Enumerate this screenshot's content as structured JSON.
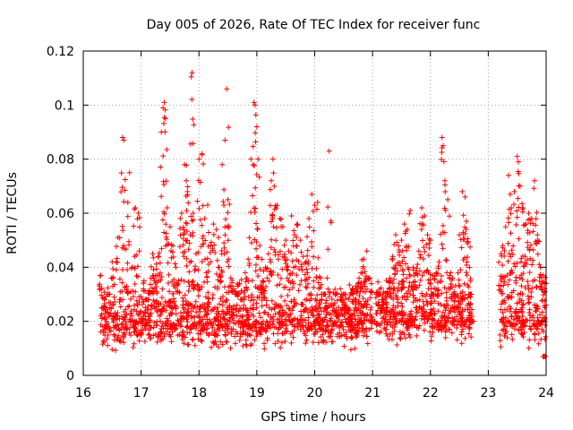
{
  "chart_data": {
    "type": "scatter",
    "title": "Day 005 of 2026, Rate Of TEC Index for receiver func",
    "xlabel": "GPS time / hours",
    "ylabel": "ROTI / TECUs",
    "xlim": [
      16,
      24
    ],
    "ylim": [
      0,
      0.12
    ],
    "x_ticks": [
      16,
      17,
      18,
      19,
      20,
      21,
      22,
      23,
      24
    ],
    "x_tick_labels": [
      "16",
      "17",
      "18",
      "19",
      "20",
      "21",
      "22",
      "23",
      "24"
    ],
    "y_ticks": [
      0,
      0.02,
      0.04,
      0.06,
      0.08,
      0.1,
      0.12
    ],
    "y_tick_labels": [
      "0",
      "0.02",
      "0.04",
      "0.06",
      "0.08",
      "0.1",
      "0.12"
    ],
    "grid": true,
    "marker": "+",
    "color": "#ff0000",
    "data_gaps_hours": [
      [
        21.0,
        21.05
      ],
      [
        22.75,
        23.2
      ]
    ],
    "series": [
      {
        "name": "ROTI",
        "points": [
          [
            16.3,
            0.037
          ],
          [
            16.35,
            0.025
          ],
          [
            16.4,
            0.018
          ],
          [
            16.45,
            0.03
          ],
          [
            16.5,
            0.042
          ],
          [
            16.55,
            0.022
          ],
          [
            16.6,
            0.051
          ],
          [
            16.65,
            0.028
          ],
          [
            16.68,
            0.088
          ],
          [
            16.7,
            0.087
          ],
          [
            16.75,
            0.033
          ],
          [
            16.8,
            0.075
          ],
          [
            16.85,
            0.04
          ],
          [
            16.9,
            0.062
          ],
          [
            16.95,
            0.06
          ],
          [
            17.0,
            0.02
          ],
          [
            17.05,
            0.035
          ],
          [
            17.1,
            0.028
          ],
          [
            17.15,
            0.031
          ],
          [
            17.2,
            0.045
          ],
          [
            17.25,
            0.037
          ],
          [
            17.3,
            0.044
          ],
          [
            17.35,
            0.09
          ],
          [
            17.38,
            0.099
          ],
          [
            17.4,
            0.101
          ],
          [
            17.42,
            0.095
          ],
          [
            17.45,
            0.062
          ],
          [
            17.5,
            0.055
          ],
          [
            17.55,
            0.048
          ],
          [
            17.6,
            0.04
          ],
          [
            17.65,
            0.035
          ],
          [
            17.7,
            0.06
          ],
          [
            17.75,
            0.078
          ],
          [
            17.78,
            0.072
          ],
          [
            17.8,
            0.068
          ],
          [
            17.85,
            0.052
          ],
          [
            17.88,
            0.112
          ],
          [
            17.9,
            0.06
          ],
          [
            17.95,
            0.045
          ],
          [
            18.0,
            0.08
          ],
          [
            18.05,
            0.082
          ],
          [
            18.1,
            0.058
          ],
          [
            18.15,
            0.063
          ],
          [
            18.2,
            0.048
          ],
          [
            18.25,
            0.056
          ],
          [
            18.3,
            0.054
          ],
          [
            18.35,
            0.04
          ],
          [
            18.4,
            0.078
          ],
          [
            18.45,
            0.087
          ],
          [
            18.48,
            0.106
          ],
          [
            18.5,
            0.065
          ],
          [
            18.55,
            0.036
          ],
          [
            18.6,
            0.032
          ],
          [
            18.65,
            0.03
          ],
          [
            18.7,
            0.034
          ],
          [
            18.75,
            0.028
          ],
          [
            18.8,
            0.038
          ],
          [
            18.85,
            0.043
          ],
          [
            18.9,
            0.08
          ],
          [
            18.95,
            0.101
          ],
          [
            18.97,
            0.1
          ],
          [
            19.0,
            0.092
          ],
          [
            19.02,
            0.08
          ],
          [
            19.05,
            0.048
          ],
          [
            19.1,
            0.035
          ],
          [
            19.15,
            0.04
          ],
          [
            19.2,
            0.045
          ],
          [
            19.25,
            0.072
          ],
          [
            19.28,
            0.08
          ],
          [
            19.3,
            0.07
          ],
          [
            19.35,
            0.063
          ],
          [
            19.4,
            0.058
          ],
          [
            19.45,
            0.055
          ],
          [
            19.5,
            0.05
          ],
          [
            19.55,
            0.046
          ],
          [
            19.6,
            0.059
          ],
          [
            19.65,
            0.052
          ],
          [
            19.7,
            0.056
          ],
          [
            19.75,
            0.05
          ],
          [
            19.8,
            0.044
          ],
          [
            19.85,
            0.042
          ],
          [
            19.9,
            0.058
          ],
          [
            19.95,
            0.067
          ],
          [
            20.0,
            0.063
          ],
          [
            20.05,
            0.064
          ],
          [
            20.1,
            0.036
          ],
          [
            20.15,
            0.03
          ],
          [
            20.2,
            0.025
          ],
          [
            20.25,
            0.083
          ],
          [
            20.3,
            0.026
          ],
          [
            20.35,
            0.024
          ],
          [
            20.4,
            0.022
          ],
          [
            20.45,
            0.028
          ],
          [
            20.5,
            0.03
          ],
          [
            20.55,
            0.025
          ],
          [
            20.6,
            0.021
          ],
          [
            20.65,
            0.032
          ],
          [
            20.7,
            0.028
          ],
          [
            20.75,
            0.034
          ],
          [
            20.8,
            0.038
          ],
          [
            20.85,
            0.043
          ],
          [
            20.9,
            0.046
          ],
          [
            20.95,
            0.036
          ],
          [
            21.0,
            0.02
          ],
          [
            21.1,
            0.03
          ],
          [
            21.15,
            0.024
          ],
          [
            21.2,
            0.027
          ],
          [
            21.25,
            0.031
          ],
          [
            21.3,
            0.036
          ],
          [
            21.35,
            0.044
          ],
          [
            21.4,
            0.052
          ],
          [
            21.45,
            0.048
          ],
          [
            21.5,
            0.05
          ],
          [
            21.55,
            0.056
          ],
          [
            21.6,
            0.054
          ],
          [
            21.65,
            0.061
          ],
          [
            21.7,
            0.04
          ],
          [
            21.75,
            0.038
          ],
          [
            21.8,
            0.046
          ],
          [
            21.85,
            0.062
          ],
          [
            21.9,
            0.059
          ],
          [
            21.95,
            0.052
          ],
          [
            22.0,
            0.05
          ],
          [
            22.05,
            0.03
          ],
          [
            22.1,
            0.038
          ],
          [
            22.15,
            0.042
          ],
          [
            22.2,
            0.088
          ],
          [
            22.22,
            0.085
          ],
          [
            22.25,
            0.072
          ],
          [
            22.3,
            0.065
          ],
          [
            22.35,
            0.038
          ],
          [
            22.4,
            0.03
          ],
          [
            22.45,
            0.025
          ],
          [
            22.5,
            0.052
          ],
          [
            22.55,
            0.068
          ],
          [
            22.6,
            0.066
          ],
          [
            22.62,
            0.057
          ],
          [
            22.65,
            0.049
          ],
          [
            22.7,
            0.03
          ],
          [
            22.72,
            0.02
          ],
          [
            23.22,
            0.045
          ],
          [
            23.25,
            0.048
          ],
          [
            23.3,
            0.055
          ],
          [
            23.35,
            0.074
          ],
          [
            23.38,
            0.067
          ],
          [
            23.4,
            0.062
          ],
          [
            23.45,
            0.068
          ],
          [
            23.5,
            0.081
          ],
          [
            23.52,
            0.079
          ],
          [
            23.55,
            0.07
          ],
          [
            23.6,
            0.062
          ],
          [
            23.65,
            0.056
          ],
          [
            23.7,
            0.06
          ],
          [
            23.75,
            0.058
          ],
          [
            23.8,
            0.072
          ],
          [
            23.85,
            0.052
          ],
          [
            23.9,
            0.04
          ],
          [
            23.95,
            0.037
          ],
          [
            24.0,
            0.034
          ],
          [
            23.98,
            0.007
          ]
        ],
        "dense_bands": [
          {
            "x_start": 16.28,
            "x_end": 21.0,
            "y_low": 0.008,
            "y_high": 0.038,
            "y_mode": 0.02
          },
          {
            "x_start": 21.05,
            "x_end": 22.75,
            "y_low": 0.01,
            "y_high": 0.04,
            "y_mode": 0.022
          },
          {
            "x_start": 23.2,
            "x_end": 24.0,
            "y_low": 0.008,
            "y_high": 0.045,
            "y_mode": 0.022
          }
        ]
      }
    ]
  }
}
